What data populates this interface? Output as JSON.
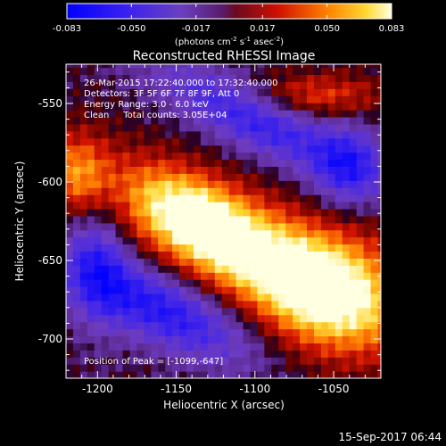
{
  "colorbar": {
    "ticks": [
      "-0.083",
      "-0.050",
      "-0.017",
      "0.017",
      "0.050",
      "0.083"
    ],
    "min": -0.083,
    "max": 0.083,
    "units": "(photons cm",
    "units_exp1": "-2",
    "units_mid": " s",
    "units_exp2": "-1",
    "units_end": " asec",
    "units_exp3": "-2",
    "units_close": ")"
  },
  "chart_data": {
    "type": "heatmap",
    "title": "Reconstructed RHESSI Image",
    "xlabel": "Heliocentric X (arcsec)",
    "ylabel": "Heliocentric Y (arcsec)",
    "xlim": [
      -1220,
      -1020
    ],
    "ylim": [
      -725,
      -525
    ],
    "x_ticks": [
      "-1200",
      "-1150",
      "-1100",
      "-1050"
    ],
    "x_tick_values": [
      -1200,
      -1150,
      -1100,
      -1050
    ],
    "y_ticks": [
      "-550",
      "-600",
      "-650",
      "-700"
    ],
    "y_tick_values": [
      -550,
      -600,
      -650,
      -700
    ],
    "annotations": [
      "26-Mar-2015 17:22:40.000 to 17:32:40.000",
      "Detectors: 3F 5F 6F 7F 8F 9F, Att 0",
      "Energy Range: 3.0 - 6.0 keV",
      "Clean     Total counts: 3.05E+04"
    ],
    "peak_label": "Position of Peak = [-1099,-647]",
    "peak": [
      -1099,
      -647
    ],
    "secondary_peak": [
      -1212,
      -595
    ],
    "peak_value": 0.083,
    "min_value": -0.083
  },
  "footer": {
    "date": "15-Sep-2017 06:44"
  },
  "colors": {
    "background": "#000000",
    "text": "#ffffff"
  }
}
